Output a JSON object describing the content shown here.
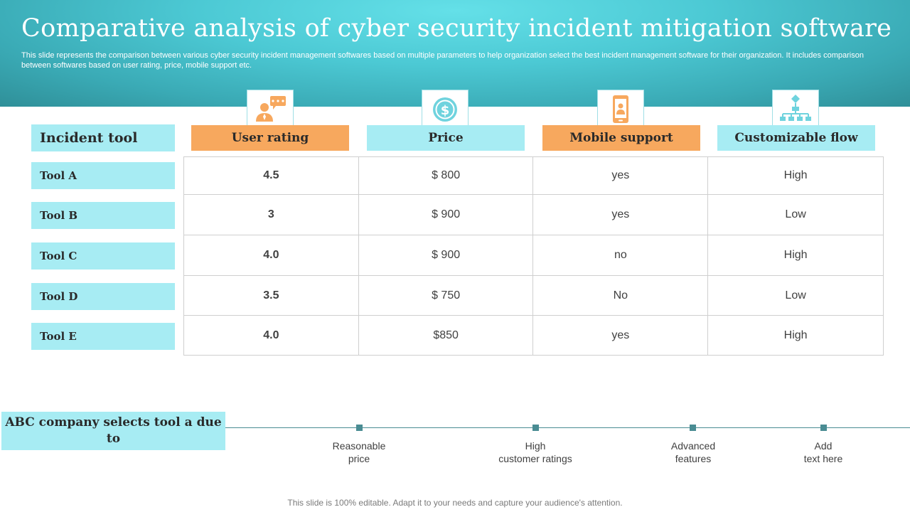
{
  "title": "Comparative analysis of cyber security incident mitigation software",
  "subtitle": "This slide represents the comparison between various cyber security incident management softwares based on multiple parameters to help organization select the best incident management software for their organization. It includes comparison between softwares based on user rating, price, mobile support etc.",
  "table": {
    "row_header": "Incident tool",
    "columns": [
      {
        "label": "User rating",
        "icon": "user-rating-icon",
        "color": "#f7a85e"
      },
      {
        "label": "Price",
        "icon": "dollar-coin-icon",
        "color": "#a7ecf3"
      },
      {
        "label": "Mobile support",
        "icon": "mobile-phone-icon",
        "color": "#f7a85e"
      },
      {
        "label": "Customizable flow",
        "icon": "hierarchy-flow-icon",
        "color": "#a7ecf3"
      }
    ],
    "rows": [
      {
        "tool": "Tool A",
        "values": [
          "4.5",
          "$ 800",
          "yes",
          "High"
        ]
      },
      {
        "tool": "Tool B",
        "values": [
          "3",
          "$ 900",
          "yes",
          "Low"
        ]
      },
      {
        "tool": "Tool C",
        "values": [
          "4.0",
          "$ 900",
          "no",
          "High"
        ]
      },
      {
        "tool": "Tool D",
        "values": [
          "3.5",
          "$ 750",
          "No",
          "Low"
        ]
      },
      {
        "tool": "Tool E",
        "values": [
          "4.0",
          "$850",
          "yes",
          "High"
        ]
      }
    ]
  },
  "selection": {
    "heading": "ABC company selects tool a due to",
    "reasons": [
      "Reasonable\nprice",
      "High\ncustomer ratings",
      "Advanced\nfeatures",
      "Add\ntext here"
    ]
  },
  "footer": "This slide is 100% editable. Adapt it to your needs and capture your audience's attention.",
  "colors": {
    "accent_orange": "#f7a85e",
    "accent_cyan": "#a7ecf3",
    "banner_teal": "#4cc9d4",
    "timeline": "#4a8c93"
  }
}
